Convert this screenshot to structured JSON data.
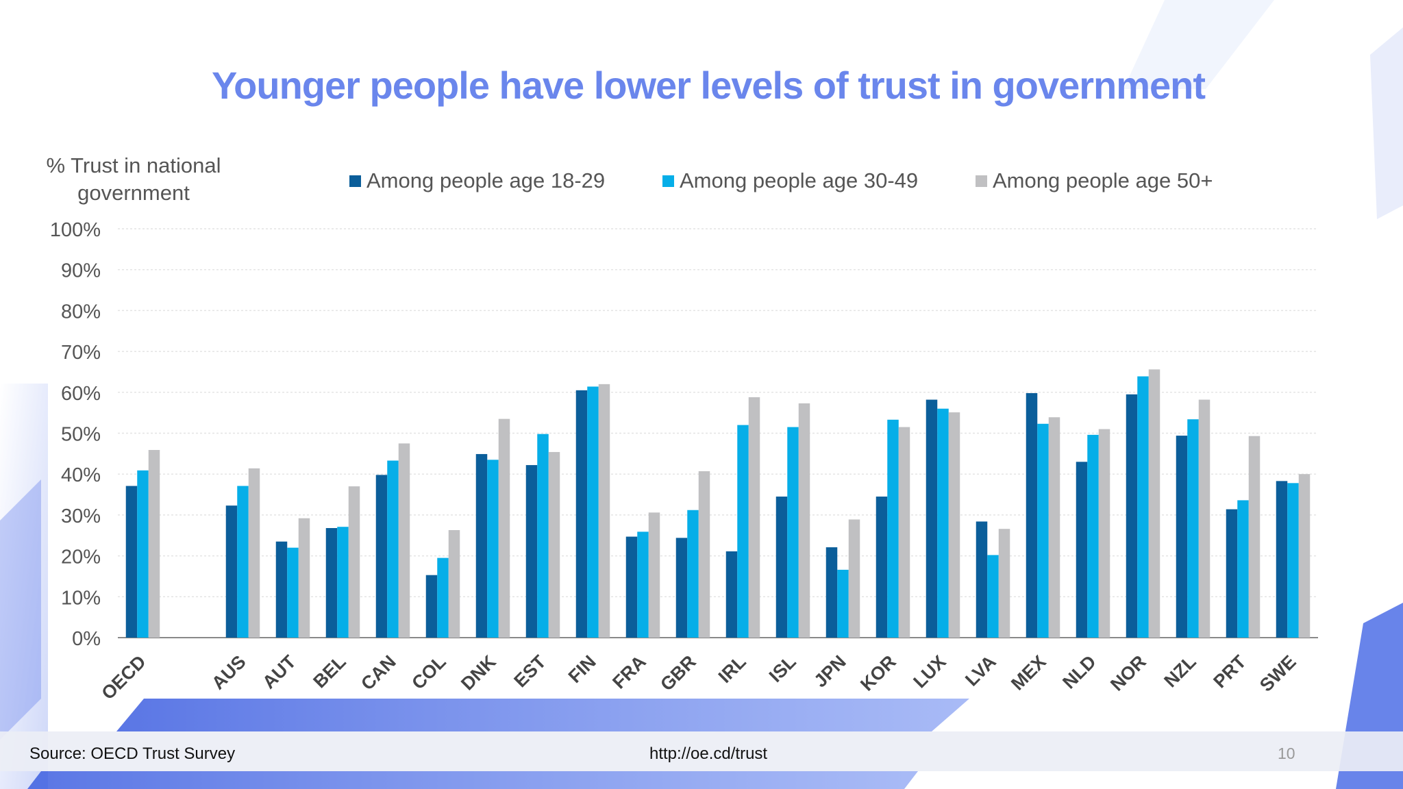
{
  "title": "Younger people have lower levels of trust in government",
  "chart_data": {
    "type": "bar",
    "ylabel": "% Trust in national government",
    "ylim": [
      0,
      100
    ],
    "yticks": [
      "0%",
      "10%",
      "20%",
      "30%",
      "40%",
      "50%",
      "60%",
      "70%",
      "80%",
      "90%",
      "100%"
    ],
    "grid": true,
    "legend_position": "top",
    "categories": [
      "OECD",
      "AUS",
      "AUT",
      "BEL",
      "CAN",
      "COL",
      "DNK",
      "EST",
      "FIN",
      "FRA",
      "GBR",
      "IRL",
      "ISL",
      "JPN",
      "KOR",
      "LUX",
      "LVA",
      "MEX",
      "NLD",
      "NOR",
      "NZL",
      "PRT",
      "SWE"
    ],
    "series": [
      {
        "name": "Among people age 18-29",
        "color": "#0b5e9a",
        "values": [
          37.1,
          32.3,
          23.5,
          26.8,
          39.8,
          15.3,
          44.9,
          42.2,
          60.5,
          24.7,
          24.4,
          21.1,
          34.5,
          22.1,
          34.5,
          58.2,
          28.4,
          59.8,
          43.0,
          59.5,
          49.4,
          31.4,
          38.3
        ]
      },
      {
        "name": "Among people age 30-49",
        "color": "#06aee8",
        "values": [
          40.9,
          37.1,
          22.0,
          27.1,
          43.3,
          19.5,
          43.5,
          49.8,
          61.4,
          25.9,
          31.2,
          52.0,
          51.5,
          16.6,
          53.3,
          56.0,
          20.2,
          52.3,
          49.6,
          63.9,
          53.4,
          33.6,
          37.8
        ]
      },
      {
        "name": "Among people age 50+",
        "color": "#c0c0c2",
        "values": [
          45.9,
          41.4,
          29.2,
          37.0,
          47.5,
          26.3,
          53.5,
          45.4,
          62.0,
          30.6,
          40.7,
          58.8,
          57.3,
          28.9,
          51.5,
          55.1,
          26.6,
          53.9,
          51.0,
          65.6,
          58.2,
          49.3,
          40.0
        ]
      }
    ]
  },
  "footer": {
    "source": "Source: OECD Trust Survey",
    "url": "http://oe.cd/trust",
    "page_number": "10"
  }
}
